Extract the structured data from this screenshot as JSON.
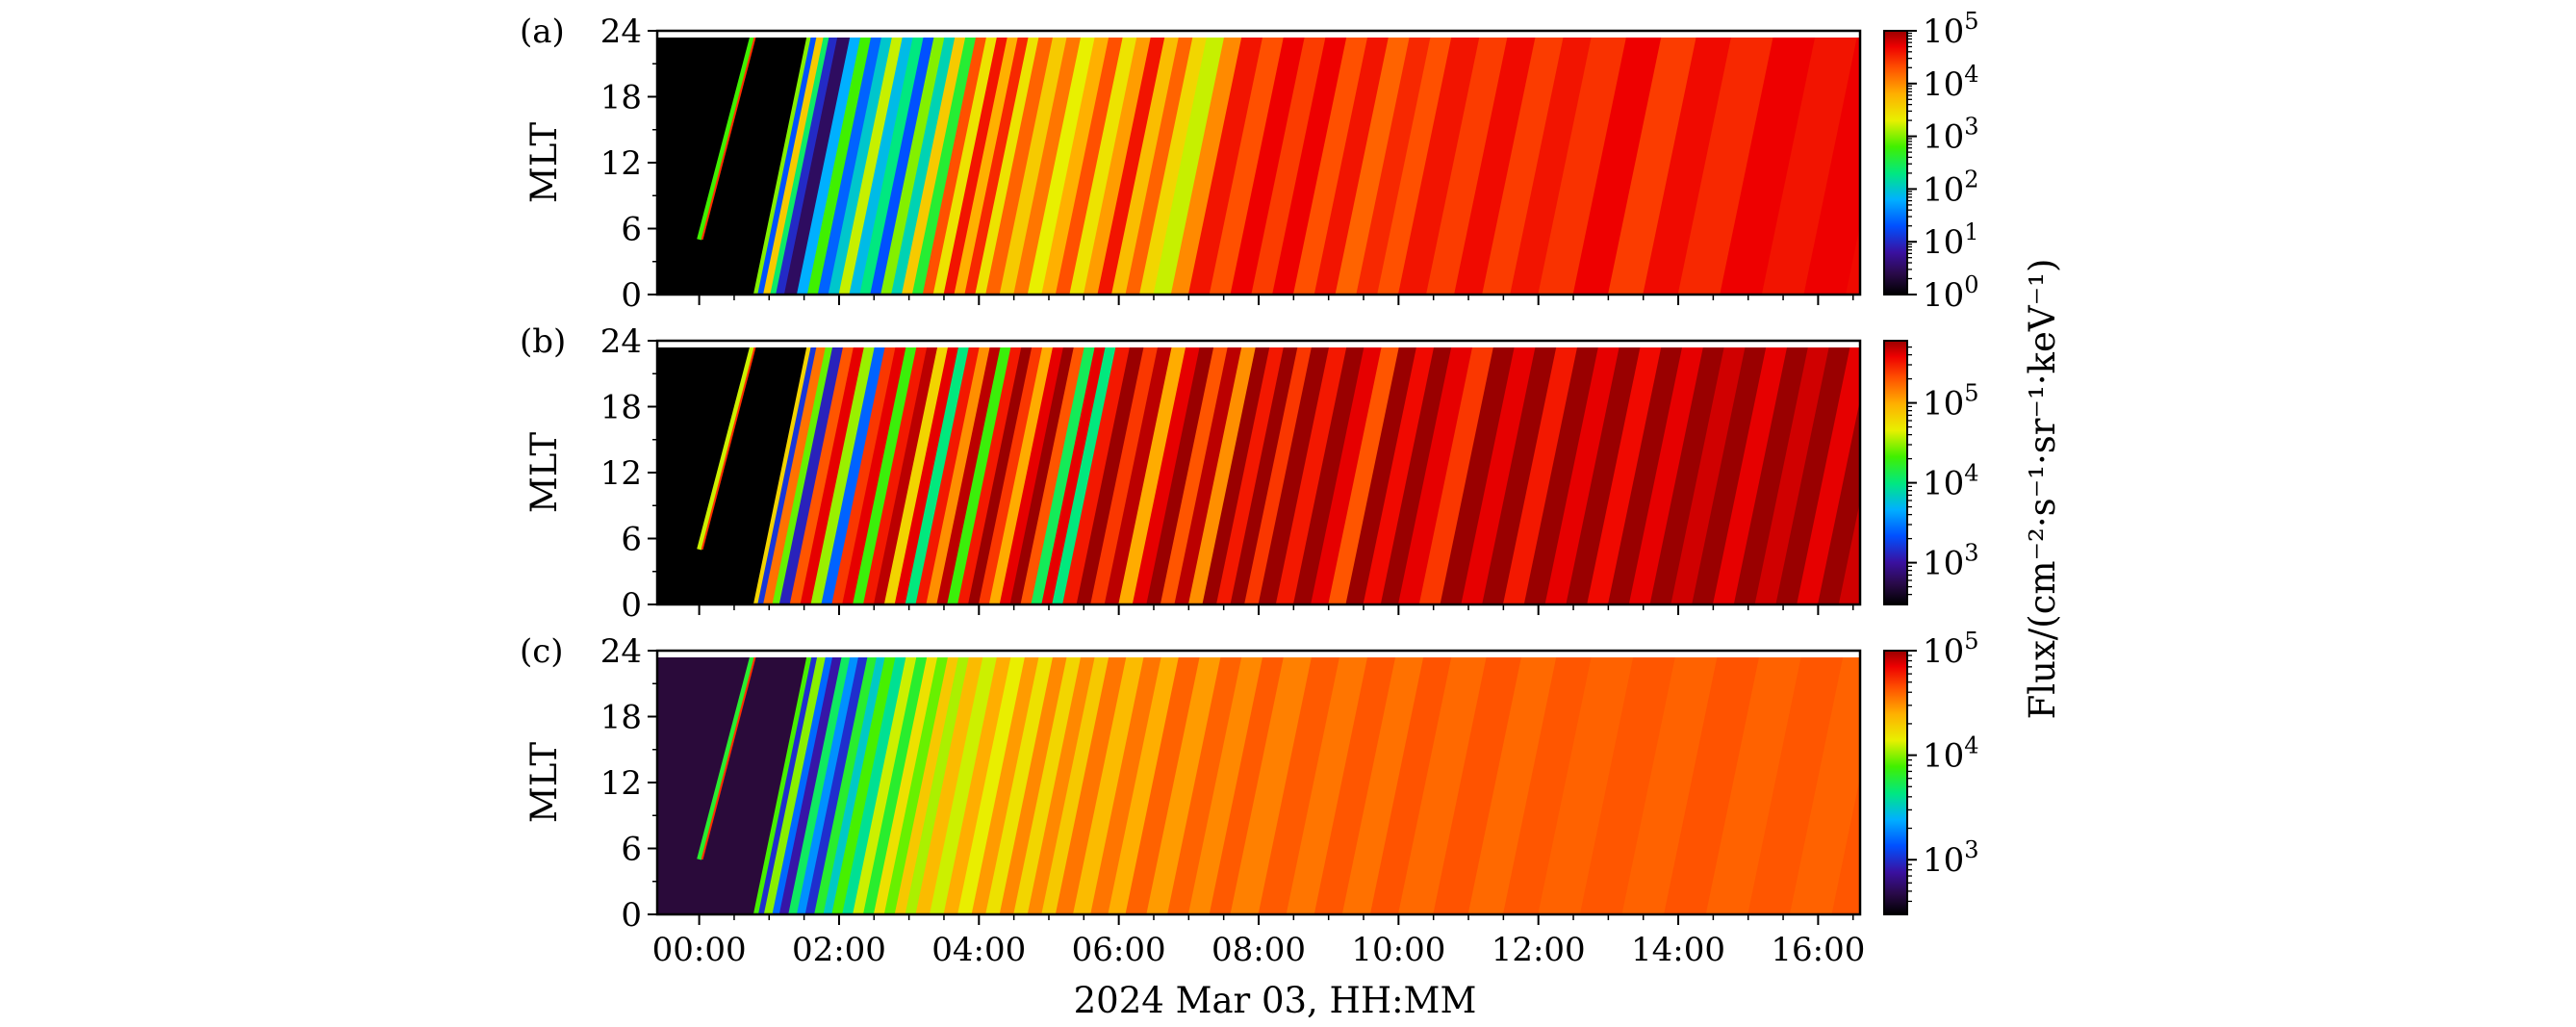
{
  "figure": {
    "xlabel": "2024 Mar 03, HH:MM",
    "colorbar_label": "Flux/(cm⁻²·s⁻¹·sr⁻¹·keV⁻¹)"
  },
  "chart_data": [
    {
      "type": "heatmap",
      "panel_label": "(a)",
      "ylabel": "MLT",
      "x_range_hours": [
        -0.6,
        16.6
      ],
      "x_ticks": [
        "00:00",
        "02:00",
        "04:00",
        "06:00",
        "08:00",
        "10:00",
        "12:00",
        "14:00",
        "16:00"
      ],
      "ylim": [
        0,
        24
      ],
      "y_ticks": [
        "0",
        "6",
        "12",
        "18",
        "24"
      ],
      "colorbar": {
        "scale": "log",
        "range": [
          1,
          100000
        ],
        "ticks": [
          {
            "base": "10",
            "exp": "0"
          },
          {
            "base": "10",
            "exp": "1"
          },
          {
            "base": "10",
            "exp": "2"
          },
          {
            "base": "10",
            "exp": "3"
          },
          {
            "base": "10",
            "exp": "4"
          },
          {
            "base": "10",
            "exp": "5"
          }
        ]
      },
      "stripe_slope_hours_per_24mlt": 0.78,
      "stripes": [
        {
          "t": 0.78,
          "log_flux": 3.0
        },
        {
          "t": 0.84,
          "log_flux": 1.3
        },
        {
          "t": 0.92,
          "log_flux": 3.6
        },
        {
          "t": 1.02,
          "log_flux": 2.4
        },
        {
          "t": 1.1,
          "log_flux": 1.0
        },
        {
          "t": 1.22,
          "log_flux": 0.5
        },
        {
          "t": 1.4,
          "log_flux": 1.8
        },
        {
          "t": 1.55,
          "log_flux": 2.8
        },
        {
          "t": 1.7,
          "log_flux": 1.4
        },
        {
          "t": 1.85,
          "log_flux": 2.0
        },
        {
          "t": 2.0,
          "log_flux": 3.2
        },
        {
          "t": 2.15,
          "log_flux": 1.9
        },
        {
          "t": 2.3,
          "log_flux": 2.3
        },
        {
          "t": 2.45,
          "log_flux": 1.3
        },
        {
          "t": 2.6,
          "log_flux": 3.0
        },
        {
          "t": 2.75,
          "log_flux": 2.1
        },
        {
          "t": 2.9,
          "log_flux": 3.6
        },
        {
          "t": 3.05,
          "log_flux": 2.6
        },
        {
          "t": 3.2,
          "log_flux": 4.3
        },
        {
          "t": 3.35,
          "log_flux": 3.4
        },
        {
          "t": 3.5,
          "log_flux": 4.6
        },
        {
          "t": 3.65,
          "log_flux": 3.8
        },
        {
          "t": 3.8,
          "log_flux": 4.5
        },
        {
          "t": 3.95,
          "log_flux": 3.4
        },
        {
          "t": 4.1,
          "log_flux": 4.2
        },
        {
          "t": 4.3,
          "log_flux": 3.6
        },
        {
          "t": 4.5,
          "log_flux": 4.1
        },
        {
          "t": 4.7,
          "log_flux": 3.3
        },
        {
          "t": 4.9,
          "log_flux": 3.8
        },
        {
          "t": 5.1,
          "log_flux": 4.3
        },
        {
          "t": 5.3,
          "log_flux": 3.4
        },
        {
          "t": 5.5,
          "log_flux": 3.9
        },
        {
          "t": 5.7,
          "log_flux": 4.6
        },
        {
          "t": 5.9,
          "log_flux": 3.7
        },
        {
          "t": 6.1,
          "log_flux": 4.2
        },
        {
          "t": 6.3,
          "log_flux": 3.5
        },
        {
          "t": 6.5,
          "log_flux": 3.2
        },
        {
          "t": 6.75,
          "log_flux": 4.0
        },
        {
          "t": 7.0,
          "log_flux": 4.6
        },
        {
          "t": 7.3,
          "log_flux": 4.3
        },
        {
          "t": 7.6,
          "log_flux": 4.7
        },
        {
          "t": 7.9,
          "log_flux": 4.4
        },
        {
          "t": 8.2,
          "log_flux": 4.7
        },
        {
          "t": 8.5,
          "log_flux": 4.3
        },
        {
          "t": 8.8,
          "log_flux": 4.6
        },
        {
          "t": 9.1,
          "log_flux": 4.2
        },
        {
          "t": 9.4,
          "log_flux": 4.5
        },
        {
          "t": 9.7,
          "log_flux": 4.3
        },
        {
          "t": 10.0,
          "log_flux": 4.6
        },
        {
          "t": 10.4,
          "log_flux": 4.4
        },
        {
          "t": 10.8,
          "log_flux": 4.65
        },
        {
          "t": 11.2,
          "log_flux": 4.4
        },
        {
          "t": 11.6,
          "log_flux": 4.6
        },
        {
          "t": 12.0,
          "log_flux": 4.45
        },
        {
          "t": 12.5,
          "log_flux": 4.7
        },
        {
          "t": 13.0,
          "log_flux": 4.4
        },
        {
          "t": 13.5,
          "log_flux": 4.65
        },
        {
          "t": 14.0,
          "log_flux": 4.5
        },
        {
          "t": 14.6,
          "log_flux": 4.7
        },
        {
          "t": 15.2,
          "log_flux": 4.6
        },
        {
          "t": 15.8,
          "log_flux": 4.7
        },
        {
          "t": 16.4,
          "log_flux": 4.65
        }
      ]
    },
    {
      "type": "heatmap",
      "panel_label": "(b)",
      "ylabel": "MLT",
      "x_range_hours": [
        -0.6,
        16.6
      ],
      "x_ticks": [
        "00:00",
        "02:00",
        "04:00",
        "06:00",
        "08:00",
        "10:00",
        "12:00",
        "14:00",
        "16:00"
      ],
      "ylim": [
        0,
        24
      ],
      "y_ticks": [
        "0",
        "6",
        "12",
        "18",
        "24"
      ],
      "colorbar": {
        "scale": "log",
        "range": [
          300,
          600000
        ],
        "ticks": [
          {
            "base": "10",
            "exp": "3"
          },
          {
            "base": "10",
            "exp": "4"
          },
          {
            "base": "10",
            "exp": "5"
          }
        ]
      },
      "stripe_slope_hours_per_24mlt": 0.78,
      "stripes": [
        {
          "t": 0.78,
          "log_flux": 4.8
        },
        {
          "t": 0.84,
          "log_flux": 3.2
        },
        {
          "t": 0.92,
          "log_flux": 5.2
        },
        {
          "t": 1.05,
          "log_flux": 4.4
        },
        {
          "t": 1.15,
          "log_flux": 3.1
        },
        {
          "t": 1.3,
          "log_flux": 5.3
        },
        {
          "t": 1.45,
          "log_flux": 5.6
        },
        {
          "t": 1.6,
          "log_flux": 4.5
        },
        {
          "t": 1.75,
          "log_flux": 3.4
        },
        {
          "t": 1.9,
          "log_flux": 5.4
        },
        {
          "t": 2.05,
          "log_flux": 5.6
        },
        {
          "t": 2.2,
          "log_flux": 4.3
        },
        {
          "t": 2.35,
          "log_flux": 5.5
        },
        {
          "t": 2.5,
          "log_flux": 5.7
        },
        {
          "t": 2.65,
          "log_flux": 4.8
        },
        {
          "t": 2.8,
          "log_flux": 5.6
        },
        {
          "t": 2.95,
          "log_flux": 4.0
        },
        {
          "t": 3.1,
          "log_flux": 5.5
        },
        {
          "t": 3.25,
          "log_flux": 5.1
        },
        {
          "t": 3.4,
          "log_flux": 5.7
        },
        {
          "t": 3.55,
          "log_flux": 4.3
        },
        {
          "t": 3.7,
          "log_flux": 5.5
        },
        {
          "t": 3.85,
          "log_flux": 5.8
        },
        {
          "t": 4.0,
          "log_flux": 5.4
        },
        {
          "t": 4.15,
          "log_flux": 5.0
        },
        {
          "t": 4.3,
          "log_flux": 5.6
        },
        {
          "t": 4.45,
          "log_flux": 5.8
        },
        {
          "t": 4.6,
          "log_flux": 5.3
        },
        {
          "t": 4.75,
          "log_flux": 4.1
        },
        {
          "t": 4.9,
          "log_flux": 5.6
        },
        {
          "t": 5.05,
          "log_flux": 4.0
        },
        {
          "t": 5.2,
          "log_flux": 5.5
        },
        {
          "t": 5.4,
          "log_flux": 5.8
        },
        {
          "t": 5.6,
          "log_flux": 5.4
        },
        {
          "t": 5.8,
          "log_flux": 5.7
        },
        {
          "t": 6.0,
          "log_flux": 5.0
        },
        {
          "t": 6.2,
          "log_flux": 5.6
        },
        {
          "t": 6.4,
          "log_flux": 5.8
        },
        {
          "t": 6.6,
          "log_flux": 5.3
        },
        {
          "t": 6.8,
          "log_flux": 5.7
        },
        {
          "t": 7.0,
          "log_flux": 5.1
        },
        {
          "t": 7.2,
          "log_flux": 5.8
        },
        {
          "t": 7.4,
          "log_flux": 5.5
        },
        {
          "t": 7.6,
          "log_flux": 5.85
        },
        {
          "t": 7.8,
          "log_flux": 5.4
        },
        {
          "t": 8.0,
          "log_flux": 5.8
        },
        {
          "t": 8.25,
          "log_flux": 5.5
        },
        {
          "t": 8.5,
          "log_flux": 5.85
        },
        {
          "t": 8.75,
          "log_flux": 5.6
        },
        {
          "t": 9.0,
          "log_flux": 5.3
        },
        {
          "t": 9.25,
          "log_flux": 5.8
        },
        {
          "t": 9.5,
          "log_flux": 5.55
        },
        {
          "t": 9.75,
          "log_flux": 5.85
        },
        {
          "t": 10.0,
          "log_flux": 5.6
        },
        {
          "t": 10.3,
          "log_flux": 5.4
        },
        {
          "t": 10.6,
          "log_flux": 5.8
        },
        {
          "t": 10.9,
          "log_flux": 5.6
        },
        {
          "t": 11.2,
          "log_flux": 5.85
        },
        {
          "t": 11.5,
          "log_flux": 5.5
        },
        {
          "t": 11.8,
          "log_flux": 5.8
        },
        {
          "t": 12.1,
          "log_flux": 5.6
        },
        {
          "t": 12.4,
          "log_flux": 5.85
        },
        {
          "t": 12.7,
          "log_flux": 5.55
        },
        {
          "t": 13.0,
          "log_flux": 5.8
        },
        {
          "t": 13.3,
          "log_flux": 5.6
        },
        {
          "t": 13.6,
          "log_flux": 5.85
        },
        {
          "t": 13.9,
          "log_flux": 5.65
        },
        {
          "t": 14.2,
          "log_flux": 5.8
        },
        {
          "t": 14.5,
          "log_flux": 5.6
        },
        {
          "t": 14.8,
          "log_flux": 5.85
        },
        {
          "t": 15.1,
          "log_flux": 5.65
        },
        {
          "t": 15.4,
          "log_flux": 5.8
        },
        {
          "t": 15.7,
          "log_flux": 5.6
        },
        {
          "t": 16.0,
          "log_flux": 5.85
        },
        {
          "t": 16.3,
          "log_flux": 5.65
        }
      ]
    },
    {
      "type": "heatmap",
      "panel_label": "(c)",
      "ylabel": "MLT",
      "x_range_hours": [
        -0.6,
        16.6
      ],
      "x_ticks": [
        "00:00",
        "02:00",
        "04:00",
        "06:00",
        "08:00",
        "10:00",
        "12:00",
        "14:00",
        "16:00"
      ],
      "ylim": [
        0,
        24
      ],
      "y_ticks": [
        "0",
        "6",
        "12",
        "18",
        "24"
      ],
      "colorbar": {
        "scale": "log",
        "range": [
          300,
          100000
        ],
        "ticks": [
          {
            "base": "10",
            "exp": "3"
          },
          {
            "base": "10",
            "exp": "4"
          },
          {
            "base": "10",
            "exp": "5"
          }
        ]
      },
      "stripe_slope_hours_per_24mlt": 0.78,
      "stripes": [
        {
          "t": 0.78,
          "log_flux": 3.9
        },
        {
          "t": 0.85,
          "log_flux": 3.0
        },
        {
          "t": 0.93,
          "log_flux": 4.0
        },
        {
          "t": 1.05,
          "log_flux": 3.2
        },
        {
          "t": 1.15,
          "log_flux": 2.9
        },
        {
          "t": 1.28,
          "log_flux": 3.7
        },
        {
          "t": 1.4,
          "log_flux": 3.3
        },
        {
          "t": 1.52,
          "log_flux": 3.0
        },
        {
          "t": 1.65,
          "log_flux": 3.8
        },
        {
          "t": 1.78,
          "log_flux": 3.5
        },
        {
          "t": 1.9,
          "log_flux": 3.9
        },
        {
          "t": 2.05,
          "log_flux": 3.6
        },
        {
          "t": 2.2,
          "log_flux": 4.1
        },
        {
          "t": 2.35,
          "log_flux": 3.8
        },
        {
          "t": 2.5,
          "log_flux": 4.2
        },
        {
          "t": 2.65,
          "log_flux": 3.95
        },
        {
          "t": 2.8,
          "log_flux": 4.3
        },
        {
          "t": 2.95,
          "log_flux": 4.05
        },
        {
          "t": 3.1,
          "log_flux": 4.35
        },
        {
          "t": 3.3,
          "log_flux": 4.1
        },
        {
          "t": 3.5,
          "log_flux": 4.4
        },
        {
          "t": 3.7,
          "log_flux": 4.15
        },
        {
          "t": 3.9,
          "log_flux": 4.45
        },
        {
          "t": 4.1,
          "log_flux": 4.2
        },
        {
          "t": 4.3,
          "log_flux": 4.5
        },
        {
          "t": 4.5,
          "log_flux": 4.25
        },
        {
          "t": 4.7,
          "log_flux": 4.5
        },
        {
          "t": 4.9,
          "log_flux": 4.3
        },
        {
          "t": 5.1,
          "log_flux": 4.55
        },
        {
          "t": 5.35,
          "log_flux": 4.35
        },
        {
          "t": 5.6,
          "log_flux": 4.55
        },
        {
          "t": 5.85,
          "log_flux": 4.4
        },
        {
          "t": 6.1,
          "log_flux": 4.6
        },
        {
          "t": 6.4,
          "log_flux": 4.45
        },
        {
          "t": 6.7,
          "log_flux": 4.6
        },
        {
          "t": 7.0,
          "log_flux": 4.5
        },
        {
          "t": 7.3,
          "log_flux": 4.62
        },
        {
          "t": 7.6,
          "log_flux": 4.52
        },
        {
          "t": 8.0,
          "log_flux": 4.62
        },
        {
          "t": 8.4,
          "log_flux": 4.55
        },
        {
          "t": 8.8,
          "log_flux": 4.63
        },
        {
          "t": 9.2,
          "log_flux": 4.56
        },
        {
          "t": 9.6,
          "log_flux": 4.64
        },
        {
          "t": 10.0,
          "log_flux": 4.58
        },
        {
          "t": 10.5,
          "log_flux": 4.64
        },
        {
          "t": 11.0,
          "log_flux": 4.58
        },
        {
          "t": 11.5,
          "log_flux": 4.63
        },
        {
          "t": 12.0,
          "log_flux": 4.6
        },
        {
          "t": 12.6,
          "log_flux": 4.63
        },
        {
          "t": 13.2,
          "log_flux": 4.6
        },
        {
          "t": 13.8,
          "log_flux": 4.64
        },
        {
          "t": 14.4,
          "log_flux": 4.6
        },
        {
          "t": 15.0,
          "log_flux": 4.63
        },
        {
          "t": 15.6,
          "log_flux": 4.6
        },
        {
          "t": 16.2,
          "log_flux": 4.63
        }
      ]
    }
  ]
}
